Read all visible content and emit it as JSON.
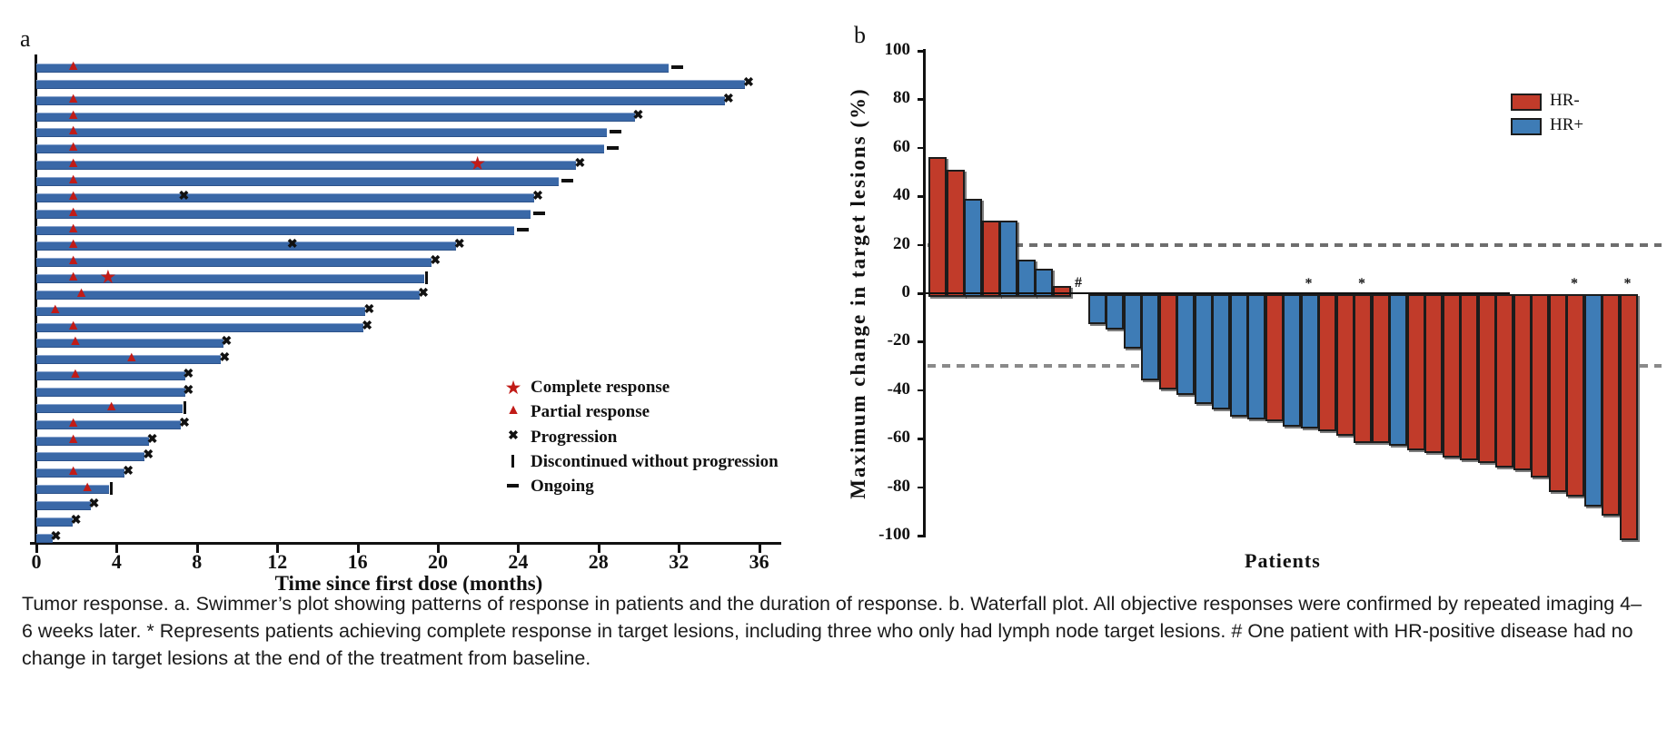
{
  "figure": {
    "caption": "Tumor response. a. Swimmer’s plot showing patterns of response in patients and the duration of response. b. Waterfall plot. All objective responses were confirmed by repeated imaging 4–6 weeks later. * Represents patients achieving complete response in target lesions, including three who only had lymph node target lesions. # One patient with HR-positive disease had no change in target lesions at the end of the treatment from baseline."
  },
  "chart_data": [
    {
      "type": "bar",
      "id": "swimmer",
      "panel_label": "a",
      "orientation": "horizontal",
      "title": "",
      "xlabel": "Time since first dose (months)",
      "ylabel": "",
      "x_ticks": [
        0,
        4,
        8,
        12,
        16,
        20,
        24,
        28,
        32,
        36
      ],
      "xlim": [
        0,
        37.5
      ],
      "bar_color": "#3A68A7",
      "grid": false,
      "legend_position": "lower-right",
      "legend": [
        {
          "marker": "star",
          "label": "Complete response",
          "color": "#C11B17"
        },
        {
          "marker": "triangle",
          "label": "Partial response",
          "color": "#C11B17"
        },
        {
          "marker": "x",
          "label": "Progression",
          "color": "#111111"
        },
        {
          "marker": "bar",
          "label": "Discontinued without progression",
          "color": "#111111"
        },
        {
          "marker": "dash",
          "label": "Ongoing",
          "color": "#111111"
        }
      ],
      "patients": [
        {
          "duration": 31.5,
          "triangle": 1.8,
          "end": "ongoing"
        },
        {
          "duration": 35.3,
          "triangle": null,
          "end": "progression"
        },
        {
          "duration": 34.3,
          "triangle": 1.8,
          "end": "progression"
        },
        {
          "duration": 29.8,
          "triangle": 1.8,
          "end": "progression"
        },
        {
          "duration": 28.4,
          "triangle": 1.8,
          "end": "ongoing"
        },
        {
          "duration": 28.3,
          "triangle": 1.8,
          "end": "ongoing"
        },
        {
          "duration": 26.9,
          "triangle": 1.8,
          "star": 22.0,
          "end": "progression"
        },
        {
          "duration": 26.0,
          "triangle": 1.8,
          "end": "ongoing"
        },
        {
          "duration": 24.8,
          "triangle": 1.8,
          "mid_x": [
            7.4
          ],
          "end": "progression"
        },
        {
          "duration": 24.6,
          "triangle": 1.8,
          "end": "ongoing"
        },
        {
          "duration": 23.8,
          "triangle": 1.8,
          "end": "ongoing"
        },
        {
          "duration": 20.9,
          "triangle": 1.8,
          "mid_x": [
            12.8
          ],
          "end": "progression"
        },
        {
          "duration": 19.7,
          "triangle": 1.8,
          "end": "progression"
        },
        {
          "duration": 19.3,
          "triangle": 1.8,
          "star": 3.6,
          "end": "discontinued"
        },
        {
          "duration": 19.1,
          "triangle": 2.2,
          "end": "progression"
        },
        {
          "duration": 16.4,
          "triangle": 0.9,
          "end": "progression"
        },
        {
          "duration": 16.3,
          "triangle": 1.8,
          "end": "progression"
        },
        {
          "duration": 9.3,
          "triangle": 1.9,
          "end": "progression"
        },
        {
          "duration": 9.2,
          "triangle": 4.7,
          "end": "progression"
        },
        {
          "duration": 7.4,
          "triangle": 1.9,
          "end": "progression"
        },
        {
          "duration": 7.4,
          "triangle": null,
          "end": "progression"
        },
        {
          "duration": 7.3,
          "triangle": 3.7,
          "end": "discontinued"
        },
        {
          "duration": 7.2,
          "triangle": 1.8,
          "end": "progression"
        },
        {
          "duration": 5.6,
          "triangle": 1.8,
          "end": "progression"
        },
        {
          "duration": 5.4,
          "triangle": null,
          "end": "progression"
        },
        {
          "duration": 4.4,
          "triangle": 1.8,
          "end": "progression"
        },
        {
          "duration": 3.6,
          "triangle": 2.5,
          "end": "discontinued"
        },
        {
          "duration": 2.7,
          "triangle": null,
          "end": "progression"
        },
        {
          "duration": 1.8,
          "triangle": null,
          "end": "progression"
        },
        {
          "duration": 0.8,
          "triangle": null,
          "end": "progression"
        }
      ]
    },
    {
      "type": "bar",
      "id": "waterfall",
      "panel_label": "b",
      "title": "",
      "xlabel": "Patients",
      "ylabel": "Maximum change in target lesions (%)",
      "y_ticks": [
        100,
        80,
        60,
        40,
        20,
        0,
        -20,
        -40,
        -60,
        -80,
        -100
      ],
      "ylim": [
        -100,
        100
      ],
      "grid": false,
      "reference_lines": [
        20,
        -30
      ],
      "legend_position": "upper-right",
      "legend": [
        {
          "label": "HR-",
          "color": "#C13B2A"
        },
        {
          "label": "HR+",
          "color": "#3E7CB6"
        }
      ],
      "bars": [
        {
          "value": 56,
          "group": "HR-"
        },
        {
          "value": 51,
          "group": "HR-"
        },
        {
          "value": 39,
          "group": "HR+"
        },
        {
          "value": 30,
          "group": "HR-"
        },
        {
          "value": 30,
          "group": "HR+"
        },
        {
          "value": 14,
          "group": "HR+"
        },
        {
          "value": 10,
          "group": "HR+"
        },
        {
          "value": 3,
          "group": "HR-"
        },
        {
          "value": 0,
          "group": "HR+",
          "annotation": "#"
        },
        {
          "value": -11,
          "group": "HR+"
        },
        {
          "value": -13,
          "group": "HR+"
        },
        {
          "value": -21,
          "group": "HR+"
        },
        {
          "value": -34,
          "group": "HR+"
        },
        {
          "value": -38,
          "group": "HR-"
        },
        {
          "value": -40,
          "group": "HR+"
        },
        {
          "value": -44,
          "group": "HR+"
        },
        {
          "value": -46,
          "group": "HR+"
        },
        {
          "value": -49,
          "group": "HR+"
        },
        {
          "value": -50,
          "group": "HR+"
        },
        {
          "value": -51,
          "group": "HR-"
        },
        {
          "value": -53,
          "group": "HR+"
        },
        {
          "value": -54,
          "group": "HR+",
          "annotation": "*"
        },
        {
          "value": -55,
          "group": "HR-"
        },
        {
          "value": -57,
          "group": "HR-"
        },
        {
          "value": -60,
          "group": "HR-",
          "annotation": "*"
        },
        {
          "value": -60,
          "group": "HR-"
        },
        {
          "value": -61,
          "group": "HR+"
        },
        {
          "value": -63,
          "group": "HR-"
        },
        {
          "value": -64,
          "group": "HR-"
        },
        {
          "value": -66,
          "group": "HR-"
        },
        {
          "value": -67,
          "group": "HR-"
        },
        {
          "value": -68,
          "group": "HR-"
        },
        {
          "value": -70,
          "group": "HR-"
        },
        {
          "value": -71,
          "group": "HR-"
        },
        {
          "value": -74,
          "group": "HR-"
        },
        {
          "value": -80,
          "group": "HR-"
        },
        {
          "value": -82,
          "group": "HR-",
          "annotation": "*"
        },
        {
          "value": -86,
          "group": "HR+"
        },
        {
          "value": -90,
          "group": "HR-"
        },
        {
          "value": -100,
          "group": "HR-",
          "annotation": "*"
        }
      ]
    }
  ]
}
